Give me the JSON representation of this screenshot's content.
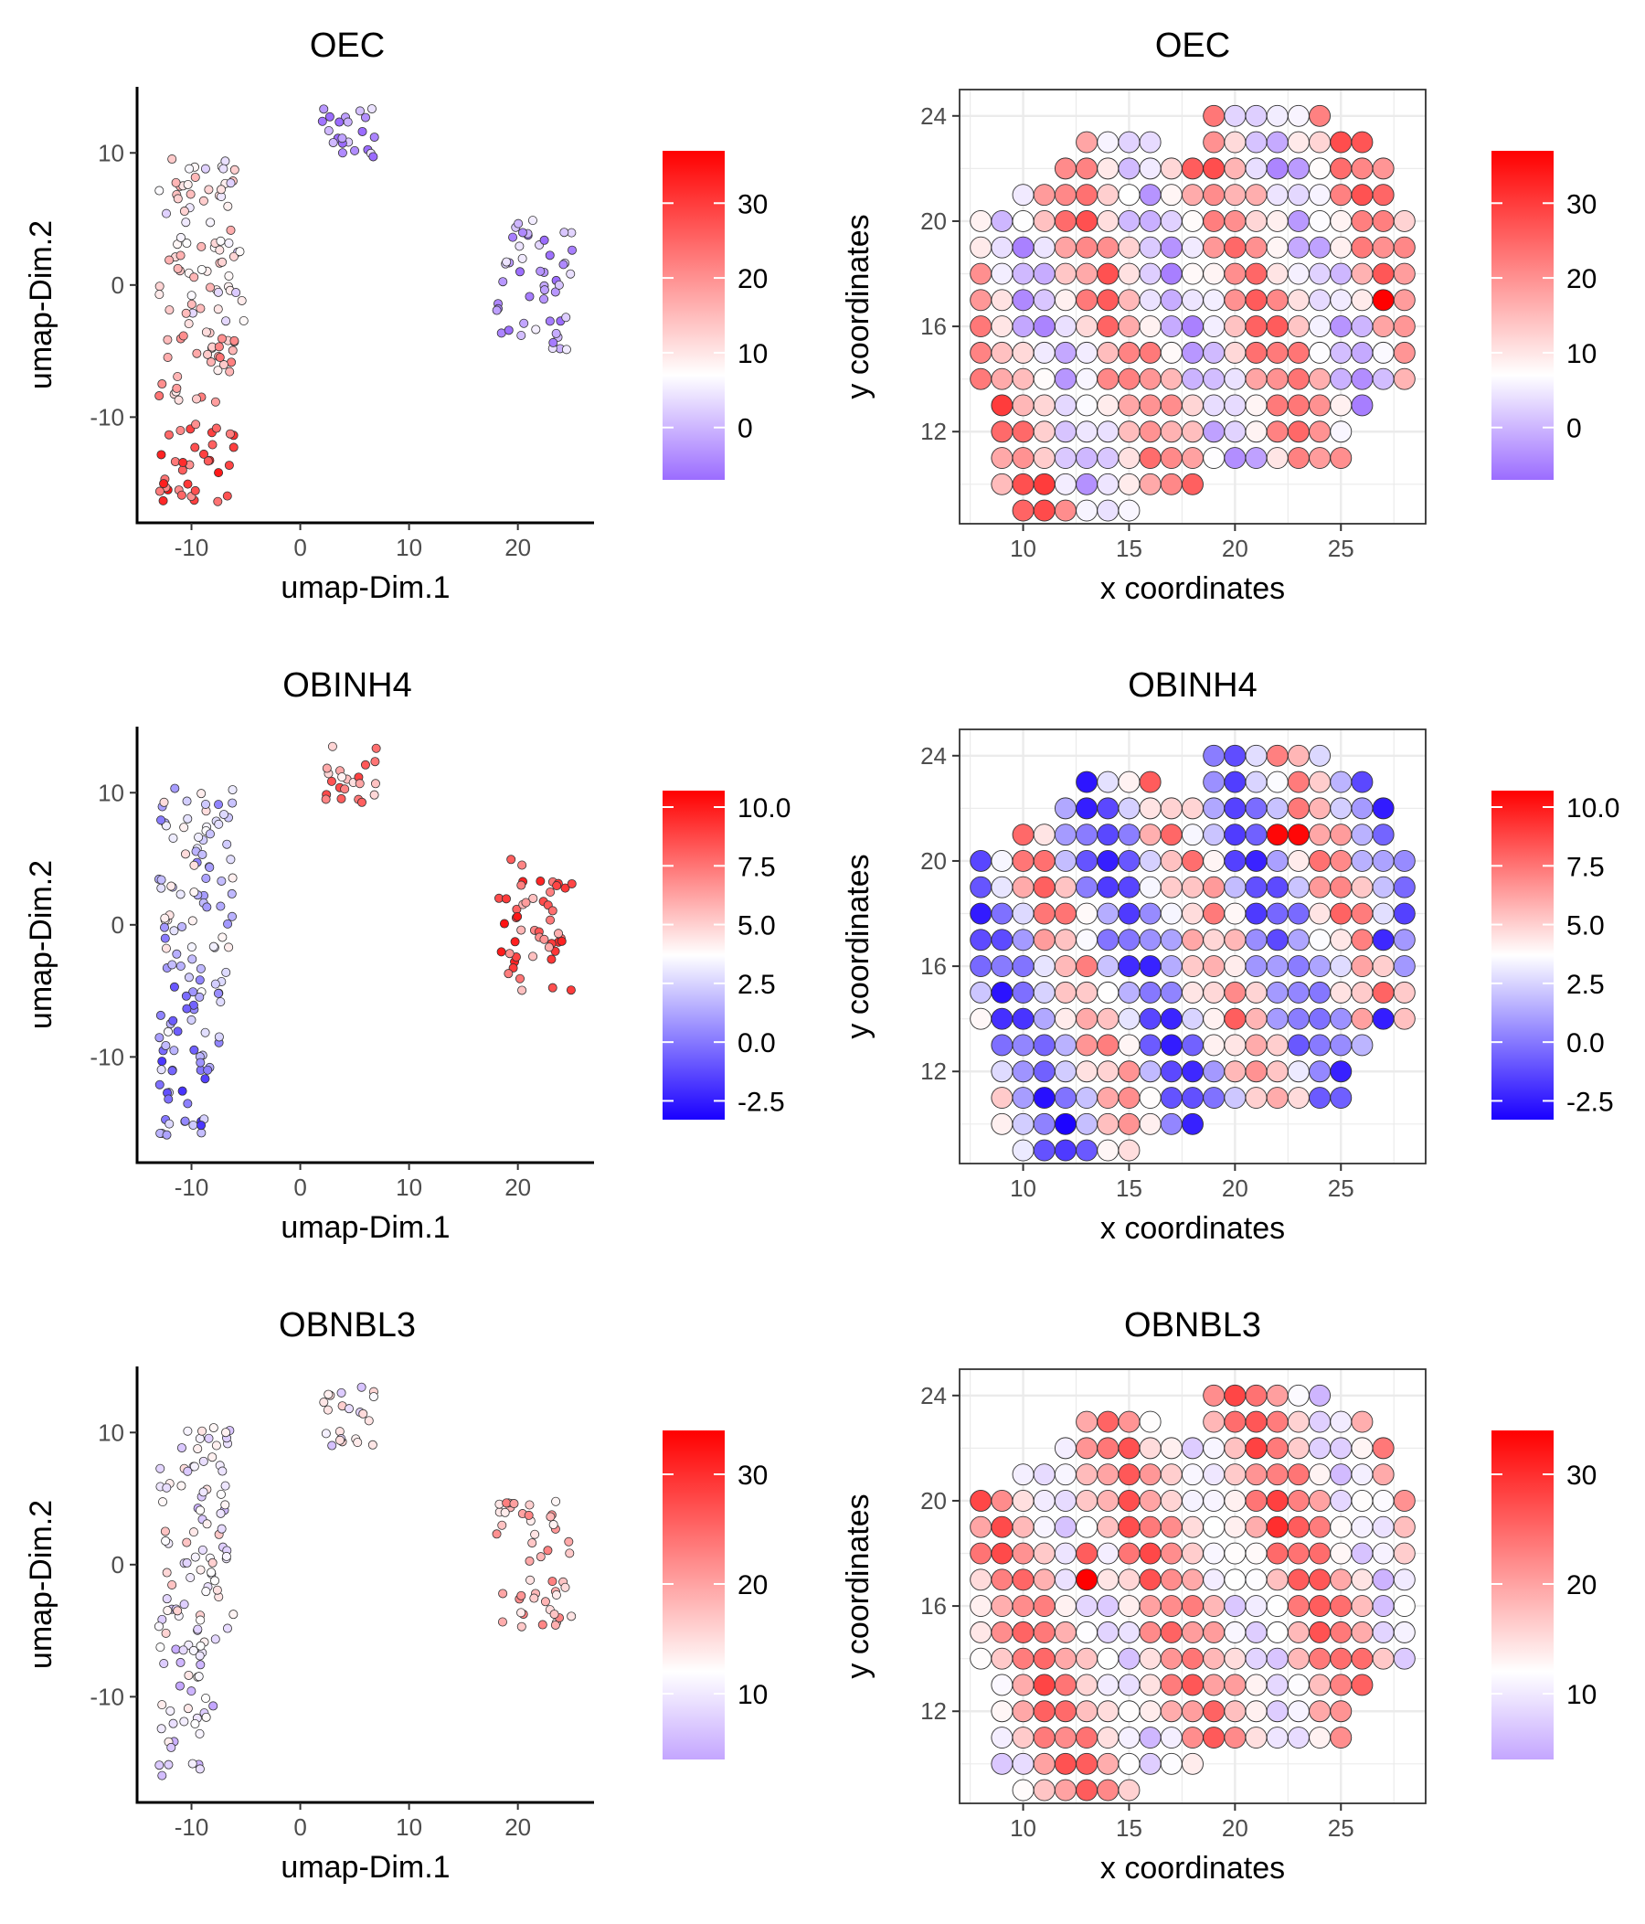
{
  "figure": {
    "panels": [
      {
        "id": "oec-umap",
        "type": "umap",
        "title": "OEC",
        "xlabel": "umap-Dim.1",
        "ylabel": "umap-Dim.2",
        "xticks": [
          "-10",
          "0",
          "10",
          "20"
        ],
        "yticks": [
          "10",
          "0",
          "-10"
        ],
        "legend": {
          "ticks": [
            "30",
            "20",
            "10",
            "0"
          ],
          "min": -7,
          "max": 37,
          "mid": 7,
          "low_color": "#9b6cff",
          "high_color": "#ff0000"
        }
      },
      {
        "id": "oec-spatial",
        "type": "spatial",
        "title": "OEC",
        "xlabel": "x coordinates",
        "ylabel": "y coordinates",
        "xticks": [
          "10",
          "15",
          "20",
          "25"
        ],
        "yticks": [
          "24",
          "20",
          "16",
          "12"
        ],
        "legend": {
          "ticks": [
            "30",
            "20",
            "10",
            "0"
          ],
          "min": -7,
          "max": 37,
          "mid": 7,
          "low_color": "#9b6cff",
          "high_color": "#ff0000"
        }
      },
      {
        "id": "obinh4-umap",
        "type": "umap",
        "title": "OBINH4",
        "xlabel": "umap-Dim.1",
        "ylabel": "umap-Dim.2",
        "xticks": [
          "-10",
          "0",
          "10",
          "20"
        ],
        "yticks": [
          "10",
          "0",
          "-10"
        ],
        "legend": {
          "ticks": [
            "10.0",
            "7.5",
            "5.0",
            "2.5",
            "0.0",
            "-2.5"
          ],
          "min": -3.3,
          "max": 10.7,
          "mid": 3.7,
          "low_color": "#1a00ff",
          "high_color": "#ff0000"
        }
      },
      {
        "id": "obinh4-spatial",
        "type": "spatial",
        "title": "OBINH4",
        "xlabel": "x coordinates",
        "ylabel": "y coordinates",
        "xticks": [
          "10",
          "15",
          "20",
          "25"
        ],
        "yticks": [
          "24",
          "20",
          "16",
          "12"
        ],
        "legend": {
          "ticks": [
            "10.0",
            "7.5",
            "5.0",
            "2.5",
            "0.0",
            "-2.5"
          ],
          "min": -3.3,
          "max": 10.7,
          "mid": 3.7,
          "low_color": "#1a00ff",
          "high_color": "#ff0000"
        }
      },
      {
        "id": "obnbl3-umap",
        "type": "umap",
        "title": "OBNBL3",
        "xlabel": "umap-Dim.1",
        "ylabel": "umap-Dim.2",
        "xticks": [
          "-10",
          "0",
          "10",
          "20"
        ],
        "yticks": [
          "10",
          "0",
          "-10"
        ],
        "legend": {
          "ticks": [
            "30",
            "20",
            "10"
          ],
          "min": 4,
          "max": 34,
          "mid": 12,
          "low_color": "#c4a6ff",
          "high_color": "#ff0000"
        }
      },
      {
        "id": "obnbl3-spatial",
        "type": "spatial",
        "title": "OBNBL3",
        "xlabel": "x coordinates",
        "ylabel": "y coordinates",
        "xticks": [
          "10",
          "15",
          "20",
          "25"
        ],
        "yticks": [
          "24",
          "20",
          "16",
          "12"
        ],
        "legend": {
          "ticks": [
            "30",
            "20",
            "10"
          ],
          "min": 4,
          "max": 34,
          "mid": 12,
          "low_color": "#c4a6ff",
          "high_color": "#ff0000"
        }
      }
    ]
  },
  "chart_data": [
    {
      "type": "scatter",
      "title": "OEC",
      "xlabel": "umap-Dim.1",
      "ylabel": "umap-Dim.2",
      "xlim": [
        -15,
        27
      ],
      "ylim": [
        -18,
        15
      ],
      "color_scale": {
        "min": -7,
        "max": 37
      },
      "clusters": [
        {
          "x": [
            -13,
            -6
          ],
          "y": [
            6,
            10
          ],
          "value": 10
        },
        {
          "x": [
            -13,
            -5
          ],
          "y": [
            -3,
            6
          ],
          "value": 9
        },
        {
          "x": [
            -13,
            -6
          ],
          "y": [
            -9,
            -3
          ],
          "value": 16
        },
        {
          "x": [
            -13,
            -6
          ],
          "y": [
            -16.5,
            -10
          ],
          "value": 27
        },
        {
          "x": [
            2,
            7
          ],
          "y": [
            9,
            13.5
          ],
          "value": -3
        },
        {
          "x": [
            18,
            25
          ],
          "y": [
            -5,
            5
          ],
          "value": -2
        }
      ]
    },
    {
      "type": "scatter",
      "title": "OEC",
      "xlabel": "x coordinates",
      "ylabel": "y coordinates",
      "xlim": [
        7,
        29
      ],
      "ylim": [
        8.5,
        25
      ],
      "color_scale": {
        "min": -7,
        "max": 37
      },
      "highlights": [
        {
          "x": 27,
          "y": 17,
          "value": 37
        },
        {
          "x": 9,
          "y": 13,
          "value": 30
        },
        {
          "x": 11,
          "y": 10,
          "value": 30
        },
        {
          "x": 26,
          "y": 23,
          "value": 27
        }
      ]
    },
    {
      "type": "scatter",
      "title": "OBINH4",
      "xlabel": "umap-Dim.1",
      "ylabel": "umap-Dim.2",
      "xlim": [
        -15,
        27
      ],
      "ylim": [
        -18,
        15
      ],
      "color_scale": {
        "min": -3.3,
        "max": 10.7
      },
      "clusters": [
        {
          "x": [
            -13,
            -6
          ],
          "y": [
            4,
            10.5
          ],
          "value": 2.5
        },
        {
          "x": [
            -13,
            -6
          ],
          "y": [
            -4,
            4
          ],
          "value": 2.2
        },
        {
          "x": [
            -13,
            -7
          ],
          "y": [
            -10,
            -4
          ],
          "value": 1.5
        },
        {
          "x": [
            -13,
            -8
          ],
          "y": [
            -16,
            -10
          ],
          "value": 0.5
        },
        {
          "x": [
            2,
            7
          ],
          "y": [
            9,
            13.5
          ],
          "value": 6.5
        },
        {
          "x": [
            18,
            25
          ],
          "y": [
            -5,
            5
          ],
          "value": 7.8
        }
      ]
    },
    {
      "type": "scatter",
      "title": "OBINH4",
      "xlabel": "x coordinates",
      "ylabel": "y coordinates",
      "xlim": [
        7,
        29
      ],
      "ylim": [
        8.5,
        25
      ],
      "color_scale": {
        "min": -3.3,
        "max": 10.7
      },
      "highlights": [
        {
          "x": 22,
          "y": 21,
          "value": 10.5
        },
        {
          "x": 23,
          "y": 21,
          "value": 10.5
        },
        {
          "x": 12,
          "y": 10,
          "value": -3.2
        },
        {
          "x": 27,
          "y": 14,
          "value": -2.5
        },
        {
          "x": 27,
          "y": 17,
          "value": -2.2
        }
      ]
    },
    {
      "type": "scatter",
      "title": "OBNBL3",
      "xlabel": "umap-Dim.1",
      "ylabel": "umap-Dim.2",
      "xlim": [
        -15,
        27
      ],
      "ylim": [
        -18,
        15
      ],
      "color_scale": {
        "min": 4,
        "max": 34
      },
      "clusters": [
        {
          "x": [
            -13,
            -6
          ],
          "y": [
            4,
            10.5
          ],
          "value": 10
        },
        {
          "x": [
            -13,
            -6
          ],
          "y": [
            -6,
            4
          ],
          "value": 12
        },
        {
          "x": [
            -13,
            -8
          ],
          "y": [
            -16,
            -6
          ],
          "value": 9
        },
        {
          "x": [
            2,
            7
          ],
          "y": [
            9,
            13.5
          ],
          "value": 11
        },
        {
          "x": [
            18,
            25
          ],
          "y": [
            -5,
            5
          ],
          "value": 18
        }
      ]
    },
    {
      "type": "scatter",
      "title": "OBNBL3",
      "xlabel": "x coordinates",
      "ylabel": "y coordinates",
      "xlim": [
        7,
        29
      ],
      "ylim": [
        8.5,
        25
      ],
      "color_scale": {
        "min": 4,
        "max": 34
      },
      "highlights": [
        {
          "x": 13,
          "y": 17,
          "value": 34
        },
        {
          "x": 22,
          "y": 19,
          "value": 30
        },
        {
          "x": 13,
          "y": 18,
          "value": 26
        }
      ]
    }
  ]
}
